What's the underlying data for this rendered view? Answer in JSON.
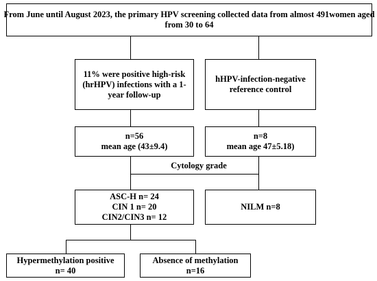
{
  "top_box": {
    "line1": "From June until August 2023, the primary HPV screening collected data from almost 491women aged",
    "line2": "from 30 to 64"
  },
  "positive_box": {
    "line1": "11% were positive high-risk",
    "line2": "(hrHPV) infections with a 1-",
    "line3": "year follow-up"
  },
  "negative_box": {
    "line1": "hHPV-infection-negative",
    "line2": "reference control"
  },
  "positive_stats": {
    "n": "n=56",
    "mean_age": "mean age (43±9.4)"
  },
  "negative_stats": {
    "n": "n=8",
    "mean_age": "mean age 47±5.18)"
  },
  "cytology_label": "Cytology grade",
  "grade_box": {
    "line1": "ASC-H n= 24",
    "line2": "CIN 1 n= 20",
    "line3": "CIN2/CIN3 n= 12"
  },
  "nilm_box": {
    "line1": "NILM n=8"
  },
  "hyper_box": {
    "line1": "Hypermethylation positive",
    "line2": "n= 40"
  },
  "absence_box": {
    "line1": "Absence of methylation",
    "line2": "n=16"
  }
}
